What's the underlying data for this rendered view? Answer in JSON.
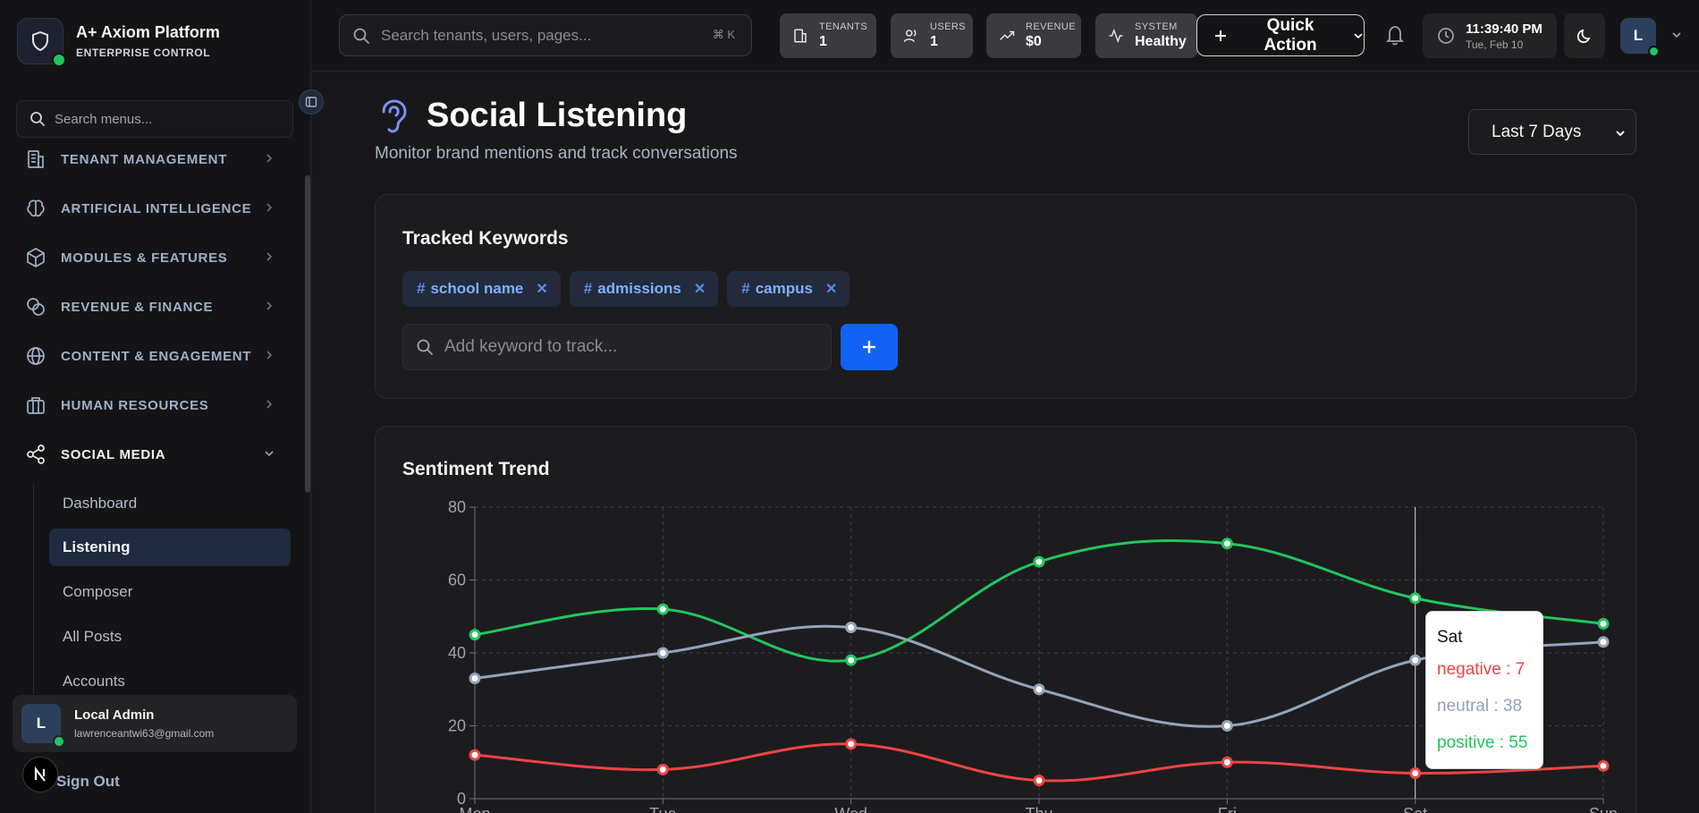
{
  "brand": {
    "title": "A+ Axiom Platform",
    "subtitle": "ENTERPRISE CONTROL"
  },
  "sidebar": {
    "search_placeholder": "Search menus...",
    "sections": [
      {
        "label": "TENANT MANAGEMENT",
        "icon": "building-icon"
      },
      {
        "label": "ARTIFICIAL INTELLIGENCE",
        "icon": "brain-icon"
      },
      {
        "label": "MODULES & FEATURES",
        "icon": "package-icon"
      },
      {
        "label": "REVENUE & FINANCE",
        "icon": "coins-icon"
      },
      {
        "label": "CONTENT & ENGAGEMENT",
        "icon": "globe-icon"
      },
      {
        "label": "HUMAN RESOURCES",
        "icon": "briefcase-icon"
      },
      {
        "label": "SOCIAL MEDIA",
        "icon": "share-icon"
      }
    ],
    "social_items": [
      {
        "label": "Dashboard"
      },
      {
        "label": "Listening"
      },
      {
        "label": "Composer"
      },
      {
        "label": "All Posts"
      },
      {
        "label": "Accounts"
      }
    ],
    "user": {
      "initial": "L",
      "name": "Local Admin",
      "email": "lawrenceantwi63@gmail.com"
    },
    "sign_out": "Sign Out",
    "next_badge": "N"
  },
  "topbar": {
    "search_placeholder": "Search tenants, users, pages...",
    "shortcut": "⌘ K",
    "stats": [
      {
        "label": "TENANTS",
        "value": "1",
        "icon": "building-icon"
      },
      {
        "label": "USERS",
        "value": "1",
        "icon": "users-icon"
      },
      {
        "label": "REVENUE",
        "value": "$0",
        "icon": "trending-up-icon"
      },
      {
        "label": "SYSTEM",
        "value": "Healthy",
        "icon": "activity-icon"
      }
    ],
    "quick_action": "Quick Action",
    "time": "11:39:40 PM",
    "date": "Tue, Feb 10",
    "avatar_initial": "L"
  },
  "page": {
    "title": "Social Listening",
    "subtitle": "Monitor brand mentions and track conversations",
    "range": "Last 7 Days"
  },
  "keywords": {
    "title": "Tracked Keywords",
    "items": [
      "school name",
      "admissions",
      "campus"
    ],
    "input_placeholder": "Add keyword to track..."
  },
  "trend": {
    "title": "Sentiment Trend",
    "tooltip": {
      "day": "Sat",
      "negative": "negative : 7",
      "neutral": "neutral : 38",
      "positive": "positive : 55"
    }
  },
  "colors": {
    "positive": "#22c55e",
    "neutral": "#94a3b8",
    "negative": "#ef4444",
    "accent": "#1262f5"
  },
  "chart_data": {
    "type": "line",
    "categories": [
      "Mon",
      "Tue",
      "Wed",
      "Thu",
      "Fri",
      "Sat",
      "Sun"
    ],
    "series": [
      {
        "name": "positive",
        "values": [
          45,
          52,
          38,
          65,
          70,
          55,
          48
        ]
      },
      {
        "name": "neutral",
        "values": [
          33,
          40,
          47,
          30,
          20,
          38,
          43
        ]
      },
      {
        "name": "negative",
        "values": [
          12,
          8,
          15,
          5,
          10,
          7,
          9
        ]
      }
    ],
    "yticks": [
      0,
      20,
      40,
      60,
      80
    ],
    "ylim": [
      0,
      80
    ],
    "grid": true,
    "highlight": "Sat"
  }
}
